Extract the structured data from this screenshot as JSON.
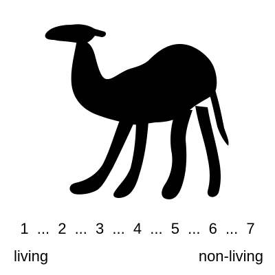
{
  "stimulus": {
    "icon": "camel-silhouette-icon",
    "fill_color": "#000000"
  },
  "scale": {
    "points": [
      "1",
      "2",
      "3",
      "4",
      "5",
      "6",
      "7"
    ],
    "separator": "...",
    "left_anchor": "living",
    "right_anchor": "non-living"
  }
}
